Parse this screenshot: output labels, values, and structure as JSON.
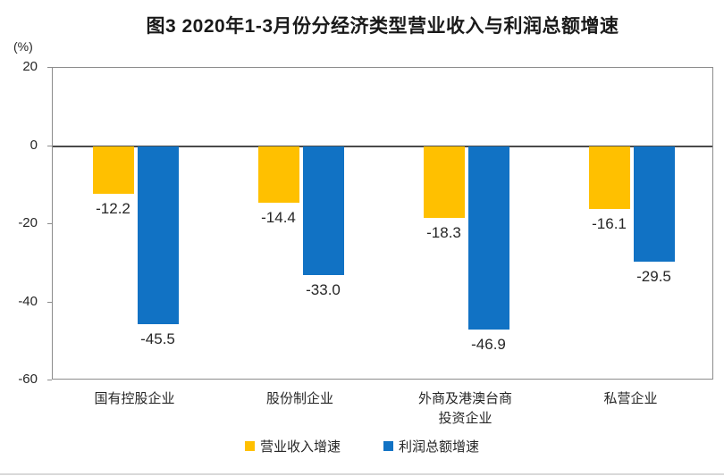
{
  "title": "图3 2020年1-3月份分经济类型营业收入与利润总额增速",
  "unit_label": "(%)",
  "chart_data": {
    "type": "bar",
    "categories": [
      "国有控股企业",
      "股份制企业",
      "外商及港澳台商投资企业",
      "私营企业"
    ],
    "category_display_lines": [
      [
        "国有控股企业"
      ],
      [
        "股份制企业"
      ],
      [
        "外商及港澳台商",
        "投资企业"
      ],
      [
        "私营企业"
      ]
    ],
    "series": [
      {
        "name": "营业收入增速",
        "color": "#FFC000",
        "values": [
          -12.2,
          -14.4,
          -18.3,
          -16.1
        ]
      },
      {
        "name": "利润总额增速",
        "color": "#1172C4",
        "values": [
          -45.5,
          -33.0,
          -46.9,
          -29.5
        ]
      }
    ],
    "ylim": [
      -60,
      20
    ],
    "yticks": [
      20,
      0,
      -20,
      -40,
      -60
    ],
    "value_label_decimals": 1,
    "grid": false,
    "legend_position": "bottom",
    "axis_border_color": "#8c8c8c",
    "zero_line_color": "#4a4a4a"
  }
}
